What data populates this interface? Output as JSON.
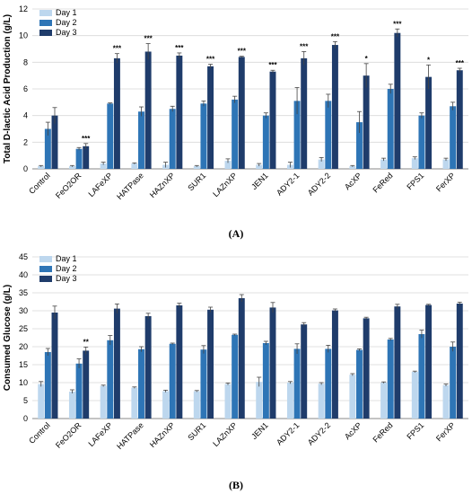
{
  "figure": {
    "panel_labels": [
      "(A)",
      "(B)"
    ]
  },
  "colors": {
    "day1": "#bdd7ee",
    "day2": "#2e75b6",
    "day3": "#1f3c6b",
    "grid": "#d9d9d9",
    "axis": "#888888",
    "error": "#444444"
  },
  "chart_data": [
    {
      "type": "bar",
      "panel": "(A)",
      "title": "",
      "xlabel": "",
      "ylabel": "Total D-lactic Acid Production (g/L)",
      "ylim": [
        0,
        12
      ],
      "yticks": [
        0,
        2,
        4,
        6,
        8,
        10,
        12
      ],
      "grid": true,
      "legend_position": "top-left",
      "categories": [
        "Control",
        "FeO2OR",
        "LAFeXP",
        "HATPase",
        "HAZnXP",
        "SUR1",
        "LAZnXP",
        "JEN1",
        "ADY2-1",
        "ADY2-2",
        "AcXP",
        "FeRed",
        "FPS1",
        "FerXP"
      ],
      "series": [
        {
          "name": "Day 1",
          "values": [
            0.2,
            0.2,
            0.4,
            0.4,
            0.3,
            0.2,
            0.6,
            0.3,
            0.3,
            0.7,
            0.2,
            0.7,
            0.8,
            0.7
          ],
          "errors": [
            0.05,
            0.05,
            0.1,
            0.05,
            0.2,
            0.05,
            0.15,
            0.1,
            0.2,
            0.15,
            0.05,
            0.1,
            0.1,
            0.1
          ]
        },
        {
          "name": "Day 2",
          "values": [
            3.0,
            1.5,
            4.9,
            4.3,
            4.5,
            4.9,
            5.2,
            4.0,
            5.1,
            5.1,
            3.5,
            6.0,
            4.0,
            4.7
          ],
          "errors": [
            0.5,
            0.1,
            0.05,
            0.35,
            0.2,
            0.2,
            0.25,
            0.2,
            1.0,
            0.5,
            0.8,
            0.35,
            0.2,
            0.3
          ]
        },
        {
          "name": "Day 3",
          "values": [
            4.0,
            1.7,
            8.3,
            8.8,
            8.5,
            7.7,
            8.4,
            7.3,
            8.3,
            9.3,
            7.0,
            10.2,
            6.9,
            7.4
          ],
          "errors": [
            0.6,
            0.2,
            0.35,
            0.6,
            0.2,
            0.15,
            0.05,
            0.1,
            0.5,
            0.25,
            0.9,
            0.3,
            0.9,
            0.15
          ]
        }
      ],
      "significance": [
        "",
        "***",
        "***",
        "***",
        "***",
        "***",
        "***",
        "***",
        "***",
        "***",
        "*",
        "***",
        "*",
        "***"
      ]
    },
    {
      "type": "bar",
      "panel": "(B)",
      "title": "",
      "xlabel": "",
      "ylabel": "Consumed Glucose (g/L)",
      "ylim": [
        0,
        45
      ],
      "yticks": [
        0,
        5,
        10,
        15,
        20,
        25,
        30,
        35,
        40,
        45
      ],
      "grid": true,
      "legend_position": "top-left",
      "categories": [
        "Control",
        "FeO2OR",
        "LAFeXP",
        "HATPase",
        "HAZnXP",
        "SUR1",
        "LAZnXP",
        "JEN1",
        "ADY2-1",
        "ADY2-2",
        "AcXP",
        "FeRed",
        "FPS1",
        "FerXP"
      ],
      "series": [
        {
          "name": "Day 1",
          "values": [
            9.6,
            7.5,
            9.1,
            8.6,
            7.6,
            7.6,
            9.6,
            10.2,
            10.0,
            9.7,
            12.2,
            10.0,
            13.0,
            9.3
          ],
          "errors": [
            0.7,
            0.5,
            0.2,
            0.2,
            0.3,
            0.2,
            0.3,
            1.3,
            0.3,
            0.3,
            0.3,
            0.2,
            0.2,
            0.3
          ]
        },
        {
          "name": "Day 2",
          "values": [
            18.5,
            15.3,
            21.8,
            19.3,
            20.8,
            19.2,
            23.3,
            21.0,
            19.4,
            19.4,
            19.1,
            22.0,
            23.5,
            20.0
          ],
          "errors": [
            1.0,
            1.3,
            1.3,
            0.7,
            0.2,
            1.1,
            0.2,
            0.5,
            1.4,
            1.0,
            0.3,
            0.3,
            1.1,
            1.3
          ]
        },
        {
          "name": "Day 3",
          "values": [
            29.5,
            18.9,
            30.6,
            28.5,
            31.5,
            30.3,
            33.5,
            30.9,
            26.2,
            30.1,
            27.9,
            31.2,
            31.6,
            32.0
          ],
          "errors": [
            1.8,
            1.0,
            1.3,
            0.8,
            0.6,
            0.7,
            1.0,
            1.4,
            0.5,
            0.4,
            0.3,
            0.6,
            0.2,
            0.4
          ]
        }
      ],
      "significance": [
        "",
        "**",
        "",
        "",
        "",
        "",
        "",
        "",
        "",
        "",
        "",
        "",
        "",
        ""
      ]
    }
  ]
}
